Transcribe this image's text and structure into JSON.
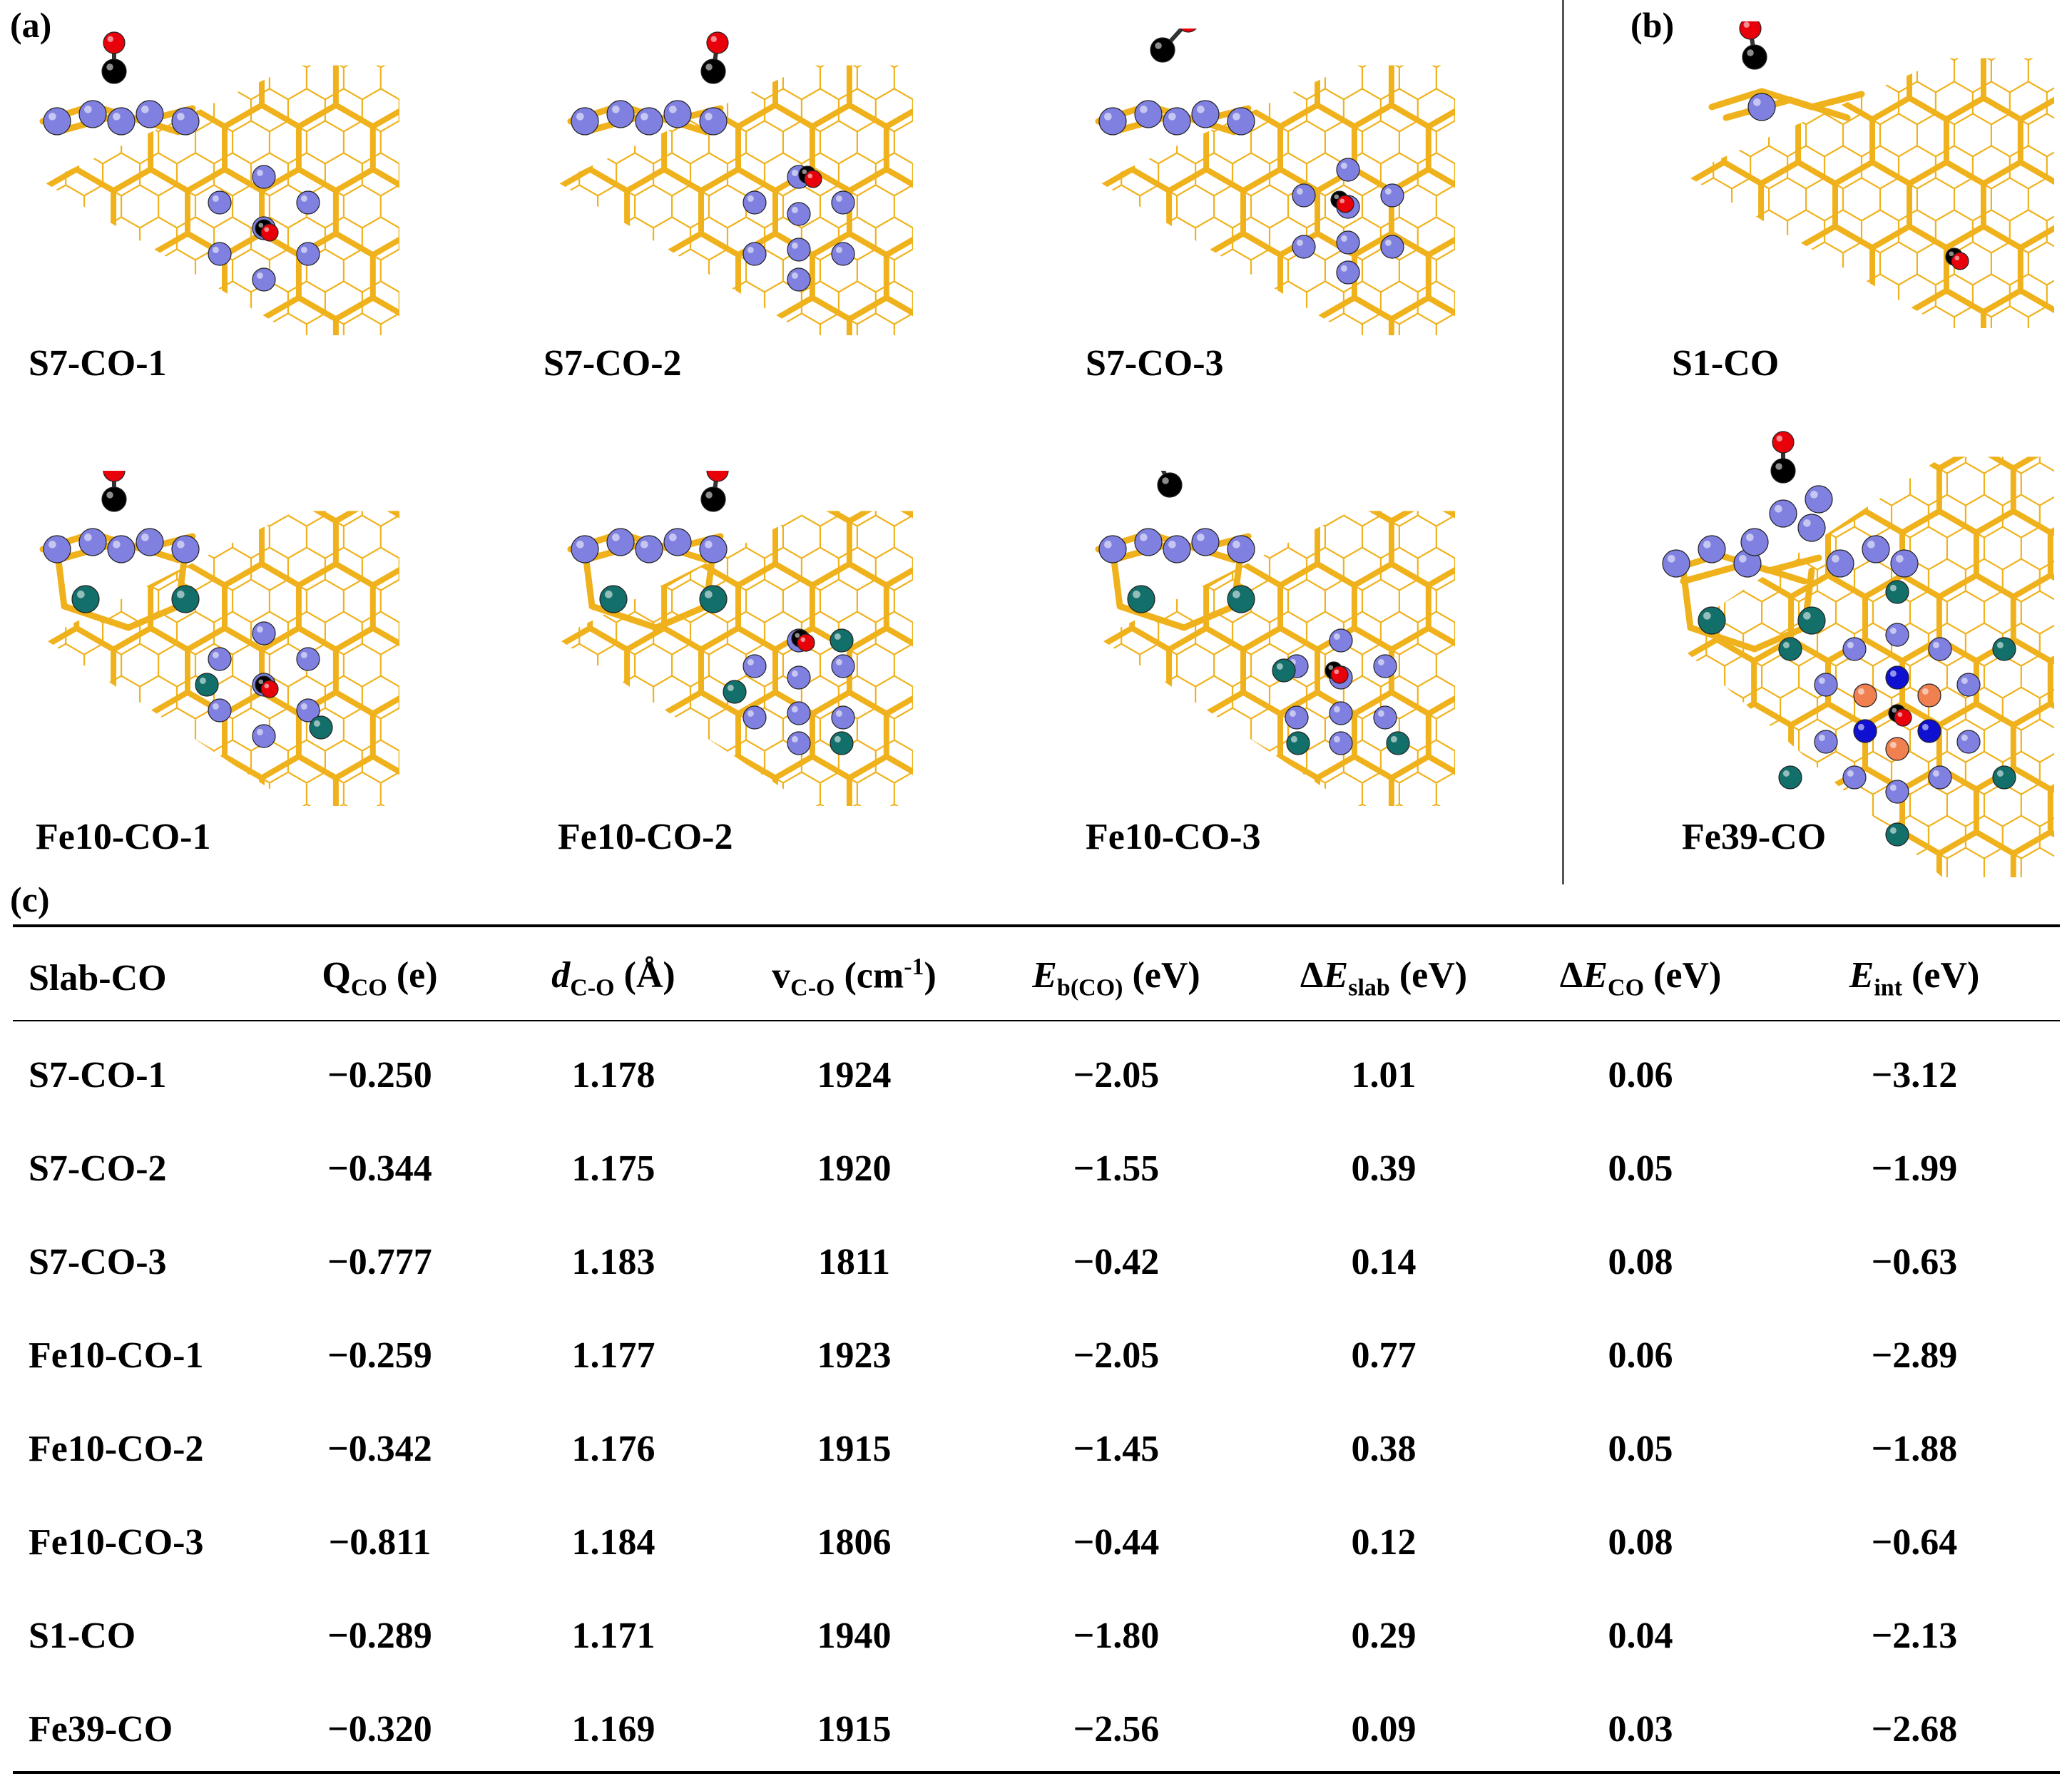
{
  "panels": {
    "a": "(a)",
    "b": "(b)",
    "c": "(c)"
  },
  "structures": [
    {
      "label": "S7-CO-1"
    },
    {
      "label": "S7-CO-2"
    },
    {
      "label": "S7-CO-3"
    },
    {
      "label": "S1-CO"
    },
    {
      "label": "Fe10-CO-1"
    },
    {
      "label": "Fe10-CO-2"
    },
    {
      "label": "Fe10-CO-3"
    },
    {
      "label": "Fe39-CO"
    }
  ],
  "colors": {
    "lattice": "#f0b21c",
    "metal": "#7f80e0",
    "carbon": "#000000",
    "oxygen": "#e8000b",
    "fe_teal": "#136f6a"
  },
  "table": {
    "headers": {
      "slab": "Slab-CO",
      "q": {
        "main": "Q",
        "sub": "CO",
        "unit": " (e)"
      },
      "d": {
        "main": "d",
        "sub": "C-O",
        "unit": " (Å)"
      },
      "v": {
        "main": "v",
        "sub": "C-O",
        "unit": " (cm",
        "sup": "-1",
        "close": ")"
      },
      "eb": {
        "main": "E",
        "sub": "b(CO)",
        "unit": " (eV)"
      },
      "dslab": {
        "pre": "Δ",
        "main": "E",
        "sub": "slab",
        "unit": " (eV)"
      },
      "dco": {
        "pre": "Δ",
        "main": "E",
        "sub": "CO",
        "unit": " (eV)"
      },
      "eint": {
        "main": "E",
        "sub": "int",
        "unit": " (eV)"
      }
    },
    "rows": [
      {
        "slab": "S7-CO-1",
        "q": "−0.250",
        "d": "1.178",
        "v": "1924",
        "eb": "−2.05",
        "dslab": "1.01",
        "dco": "0.06",
        "eint": "−3.12"
      },
      {
        "slab": "S7-CO-2",
        "q": "−0.344",
        "d": "1.175",
        "v": "1920",
        "eb": "−1.55",
        "dslab": "0.39",
        "dco": "0.05",
        "eint": "−1.99"
      },
      {
        "slab": "S7-CO-3",
        "q": "−0.777",
        "d": "1.183",
        "v": "1811",
        "eb": "−0.42",
        "dslab": "0.14",
        "dco": "0.08",
        "eint": "−0.63"
      },
      {
        "slab": "Fe10-CO-1",
        "q": "−0.259",
        "d": "1.177",
        "v": "1923",
        "eb": "−2.05",
        "dslab": "0.77",
        "dco": "0.06",
        "eint": "−2.89"
      },
      {
        "slab": "Fe10-CO-2",
        "q": "−0.342",
        "d": "1.176",
        "v": "1915",
        "eb": "−1.45",
        "dslab": "0.38",
        "dco": "0.05",
        "eint": "−1.88"
      },
      {
        "slab": "Fe10-CO-3",
        "q": "−0.811",
        "d": "1.184",
        "v": "1806",
        "eb": "−0.44",
        "dslab": "0.12",
        "dco": "0.08",
        "eint": "−0.64"
      },
      {
        "slab": "S1-CO",
        "q": "−0.289",
        "d": "1.171",
        "v": "1940",
        "eb": "−1.80",
        "dslab": "0.29",
        "dco": "0.04",
        "eint": "−2.13"
      },
      {
        "slab": "Fe39-CO",
        "q": "−0.320",
        "d": "1.169",
        "v": "1915",
        "eb": "−2.56",
        "dslab": "0.09",
        "dco": "0.03",
        "eint": "−2.68"
      }
    ]
  }
}
